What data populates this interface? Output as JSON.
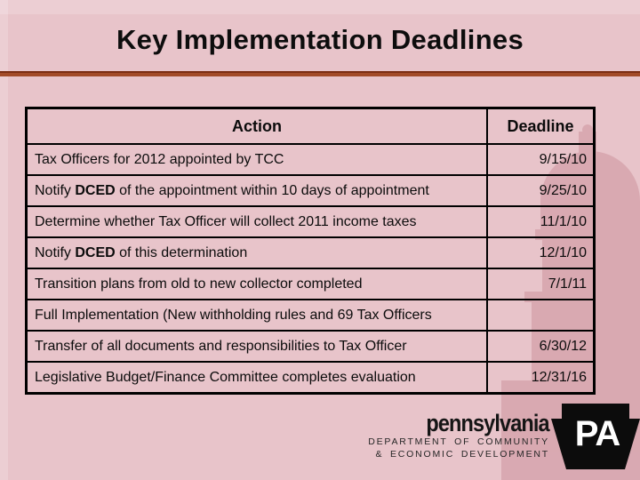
{
  "slide": {
    "title": "Key Implementation Deadlines",
    "colors": {
      "background": "#e8c4ca",
      "title_text": "#0d0d0d",
      "rule": "#a24a28",
      "table_border": "#000000",
      "body_text": "#0b0b0b",
      "watermark_pink": "#c17f8b",
      "keystone_black": "#0c0c0c",
      "keystone_letters": "#ffffff"
    },
    "watermark_icon": "capitol-building"
  },
  "table": {
    "headers": [
      "Action",
      "Deadline"
    ],
    "bold_words": [
      "DCED"
    ],
    "rows": [
      {
        "action": "Tax Officers for 2012 appointed by TCC",
        "deadline": "9/15/10"
      },
      {
        "action": "Notify DCED of the appointment within 10 days of appointment",
        "deadline": "9/25/10"
      },
      {
        "action": "Determine whether Tax Officer will collect 2011 income taxes",
        "deadline": "11/1/10"
      },
      {
        "action": "Notify DCED of this determination",
        "deadline": "12/1/10"
      },
      {
        "action": "Transition plans from old to new collector completed",
        "deadline": "7/1/11"
      },
      {
        "action": "Full Implementation (New withholding rules and 69 Tax Officers",
        "deadline": ""
      },
      {
        "action": "Transfer of all documents and responsibilities to Tax Officer",
        "deadline": "6/30/12"
      },
      {
        "action": "Legislative Budget/Finance Committee completes evaluation",
        "deadline": "12/31/16"
      }
    ]
  },
  "logo": {
    "brand": "pennsylvania",
    "dept_line1": "DEPARTMENT OF COMMUNITY",
    "dept_line2": "& ECONOMIC DEVELOPMENT",
    "keystone_text": "PA",
    "keystone_icon": "pa-keystone"
  }
}
